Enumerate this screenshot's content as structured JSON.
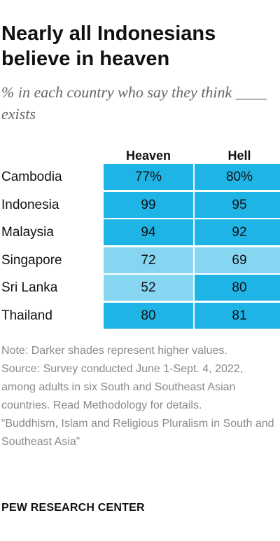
{
  "title": "Nearly all Indonesians believe in heaven",
  "subtitle": "% in each country who say they think ____ exists",
  "colors": {
    "dark_shade": "#1fb4e6",
    "light_shade": "#86d6f1"
  },
  "chart_data": {
    "type": "table",
    "columns": [
      "Heaven",
      "Hell"
    ],
    "rows": [
      {
        "label": "Cambodia",
        "values": [
          "77%",
          "80%"
        ],
        "shades": [
          "dark",
          "dark"
        ]
      },
      {
        "label": "Indonesia",
        "values": [
          "99",
          "95"
        ],
        "shades": [
          "dark",
          "dark"
        ]
      },
      {
        "label": "Malaysia",
        "values": [
          "94",
          "92"
        ],
        "shades": [
          "dark",
          "dark"
        ]
      },
      {
        "label": "Singapore",
        "values": [
          "72",
          "69"
        ],
        "shades": [
          "light",
          "light"
        ]
      },
      {
        "label": "Sri Lanka",
        "values": [
          "52",
          "80"
        ],
        "shades": [
          "light",
          "dark"
        ]
      },
      {
        "label": "Thailand",
        "values": [
          "80",
          "81"
        ],
        "shades": [
          "dark",
          "dark"
        ]
      }
    ]
  },
  "notes": [
    "Note: Darker shades represent higher values.",
    "Source: Survey conducted June 1-Sept. 4, 2022, among adults in six South and Southeast Asian countries. Read Methodology for details.",
    "“Buddhism, Islam and Religious Pluralism in South and Southeast Asia”"
  ],
  "brand": "PEW RESEARCH CENTER"
}
